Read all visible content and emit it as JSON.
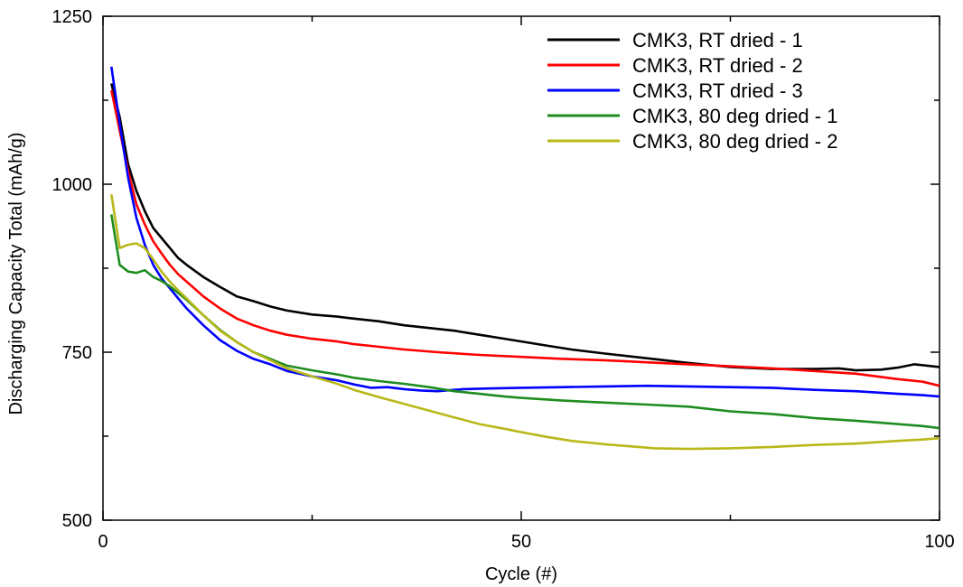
{
  "chart_data": {
    "type": "line",
    "xlabel": "Cycle (#)",
    "ylabel": "Discharging Capacity Total (mAh/g)",
    "xlim": [
      0,
      100
    ],
    "ylim": [
      500,
      1250
    ],
    "x_ticks": [
      0,
      50,
      100
    ],
    "x_minor_ticks": [
      25,
      75
    ],
    "y_ticks": [
      500,
      750,
      1000,
      1250
    ],
    "y_minor_ticks": [
      625,
      875,
      1125
    ],
    "grid": false,
    "legend_position": "top-right",
    "series": [
      {
        "name": "CMK3, RT dried - 1",
        "color": "#000000",
        "points": [
          [
            1,
            1150
          ],
          [
            2,
            1100
          ],
          [
            3,
            1030
          ],
          [
            4,
            990
          ],
          [
            5,
            960
          ],
          [
            6,
            935
          ],
          [
            7,
            920
          ],
          [
            8,
            905
          ],
          [
            9,
            890
          ],
          [
            10,
            880
          ],
          [
            12,
            862
          ],
          [
            14,
            847
          ],
          [
            16,
            833
          ],
          [
            18,
            826
          ],
          [
            20,
            818
          ],
          [
            22,
            812
          ],
          [
            25,
            806
          ],
          [
            28,
            803
          ],
          [
            30,
            800
          ],
          [
            33,
            796
          ],
          [
            36,
            790
          ],
          [
            39,
            786
          ],
          [
            42,
            782
          ],
          [
            45,
            776
          ],
          [
            48,
            770
          ],
          [
            50,
            766
          ],
          [
            53,
            760
          ],
          [
            56,
            754
          ],
          [
            60,
            748
          ],
          [
            65,
            741
          ],
          [
            70,
            734
          ],
          [
            75,
            728
          ],
          [
            80,
            725
          ],
          [
            85,
            725
          ],
          [
            88,
            726
          ],
          [
            90,
            723
          ],
          [
            93,
            724
          ],
          [
            95,
            727
          ],
          [
            97,
            732
          ],
          [
            100,
            728
          ]
        ]
      },
      {
        "name": "CMK3, RT dried - 2",
        "color": "#ff0000",
        "points": [
          [
            1,
            1140
          ],
          [
            2,
            1080
          ],
          [
            3,
            1020
          ],
          [
            4,
            970
          ],
          [
            5,
            940
          ],
          [
            6,
            915
          ],
          [
            7,
            897
          ],
          [
            8,
            880
          ],
          [
            9,
            866
          ],
          [
            10,
            855
          ],
          [
            12,
            833
          ],
          [
            14,
            815
          ],
          [
            16,
            800
          ],
          [
            18,
            790
          ],
          [
            20,
            782
          ],
          [
            22,
            776
          ],
          [
            25,
            770
          ],
          [
            28,
            766
          ],
          [
            30,
            762
          ],
          [
            33,
            758
          ],
          [
            36,
            754
          ],
          [
            40,
            750
          ],
          [
            45,
            746
          ],
          [
            50,
            743
          ],
          [
            55,
            740
          ],
          [
            60,
            738
          ],
          [
            65,
            735
          ],
          [
            70,
            732
          ],
          [
            75,
            729
          ],
          [
            80,
            726
          ],
          [
            85,
            722
          ],
          [
            90,
            718
          ],
          [
            95,
            710
          ],
          [
            98,
            706
          ],
          [
            100,
            700
          ]
        ]
      },
      {
        "name": "CMK3, RT dried - 3",
        "color": "#0000ff",
        "points": [
          [
            1,
            1175
          ],
          [
            2,
            1090
          ],
          [
            3,
            1010
          ],
          [
            4,
            950
          ],
          [
            5,
            910
          ],
          [
            6,
            880
          ],
          [
            7,
            860
          ],
          [
            8,
            845
          ],
          [
            9,
            830
          ],
          [
            10,
            815
          ],
          [
            12,
            790
          ],
          [
            14,
            768
          ],
          [
            16,
            752
          ],
          [
            18,
            740
          ],
          [
            20,
            732
          ],
          [
            22,
            722
          ],
          [
            25,
            714
          ],
          [
            28,
            708
          ],
          [
            30,
            702
          ],
          [
            32,
            697
          ],
          [
            34,
            698
          ],
          [
            36,
            695
          ],
          [
            38,
            693
          ],
          [
            40,
            692
          ],
          [
            43,
            695
          ],
          [
            46,
            696
          ],
          [
            50,
            697
          ],
          [
            55,
            698
          ],
          [
            60,
            699
          ],
          [
            65,
            700
          ],
          [
            70,
            699
          ],
          [
            75,
            698
          ],
          [
            80,
            697
          ],
          [
            85,
            694
          ],
          [
            90,
            692
          ],
          [
            95,
            688
          ],
          [
            98,
            686
          ],
          [
            100,
            684
          ]
        ]
      },
      {
        "name": "CMK3, 80 deg dried - 1",
        "color": "#1e8c1e",
        "points": [
          [
            1,
            955
          ],
          [
            2,
            880
          ],
          [
            3,
            870
          ],
          [
            4,
            868
          ],
          [
            5,
            872
          ],
          [
            6,
            862
          ],
          [
            7,
            856
          ],
          [
            8,
            848
          ],
          [
            9,
            838
          ],
          [
            10,
            828
          ],
          [
            12,
            805
          ],
          [
            14,
            783
          ],
          [
            16,
            765
          ],
          [
            18,
            750
          ],
          [
            20,
            740
          ],
          [
            22,
            730
          ],
          [
            25,
            723
          ],
          [
            28,
            717
          ],
          [
            30,
            712
          ],
          [
            33,
            707
          ],
          [
            36,
            703
          ],
          [
            39,
            698
          ],
          [
            42,
            692
          ],
          [
            45,
            688
          ],
          [
            48,
            684
          ],
          [
            50,
            682
          ],
          [
            55,
            678
          ],
          [
            60,
            675
          ],
          [
            65,
            672
          ],
          [
            70,
            669
          ],
          [
            75,
            662
          ],
          [
            80,
            658
          ],
          [
            85,
            652
          ],
          [
            90,
            648
          ],
          [
            95,
            643
          ],
          [
            98,
            640
          ],
          [
            100,
            637
          ]
        ]
      },
      {
        "name": "CMK3, 80 deg dried - 2",
        "color": "#b8b81a",
        "points": [
          [
            1,
            985
          ],
          [
            2,
            905
          ],
          [
            3,
            910
          ],
          [
            4,
            912
          ],
          [
            5,
            905
          ],
          [
            6,
            888
          ],
          [
            7,
            870
          ],
          [
            8,
            855
          ],
          [
            9,
            842
          ],
          [
            10,
            830
          ],
          [
            12,
            805
          ],
          [
            14,
            782
          ],
          [
            16,
            765
          ],
          [
            18,
            750
          ],
          [
            20,
            738
          ],
          [
            22,
            726
          ],
          [
            25,
            714
          ],
          [
            28,
            703
          ],
          [
            30,
            694
          ],
          [
            33,
            683
          ],
          [
            36,
            673
          ],
          [
            39,
            663
          ],
          [
            42,
            653
          ],
          [
            45,
            643
          ],
          [
            48,
            636
          ],
          [
            50,
            631
          ],
          [
            53,
            624
          ],
          [
            56,
            618
          ],
          [
            60,
            613
          ],
          [
            63,
            610
          ],
          [
            66,
            607
          ],
          [
            70,
            606
          ],
          [
            75,
            607
          ],
          [
            80,
            609
          ],
          [
            85,
            612
          ],
          [
            90,
            614
          ],
          [
            95,
            618
          ],
          [
            98,
            620
          ],
          [
            100,
            622
          ]
        ]
      }
    ]
  }
}
